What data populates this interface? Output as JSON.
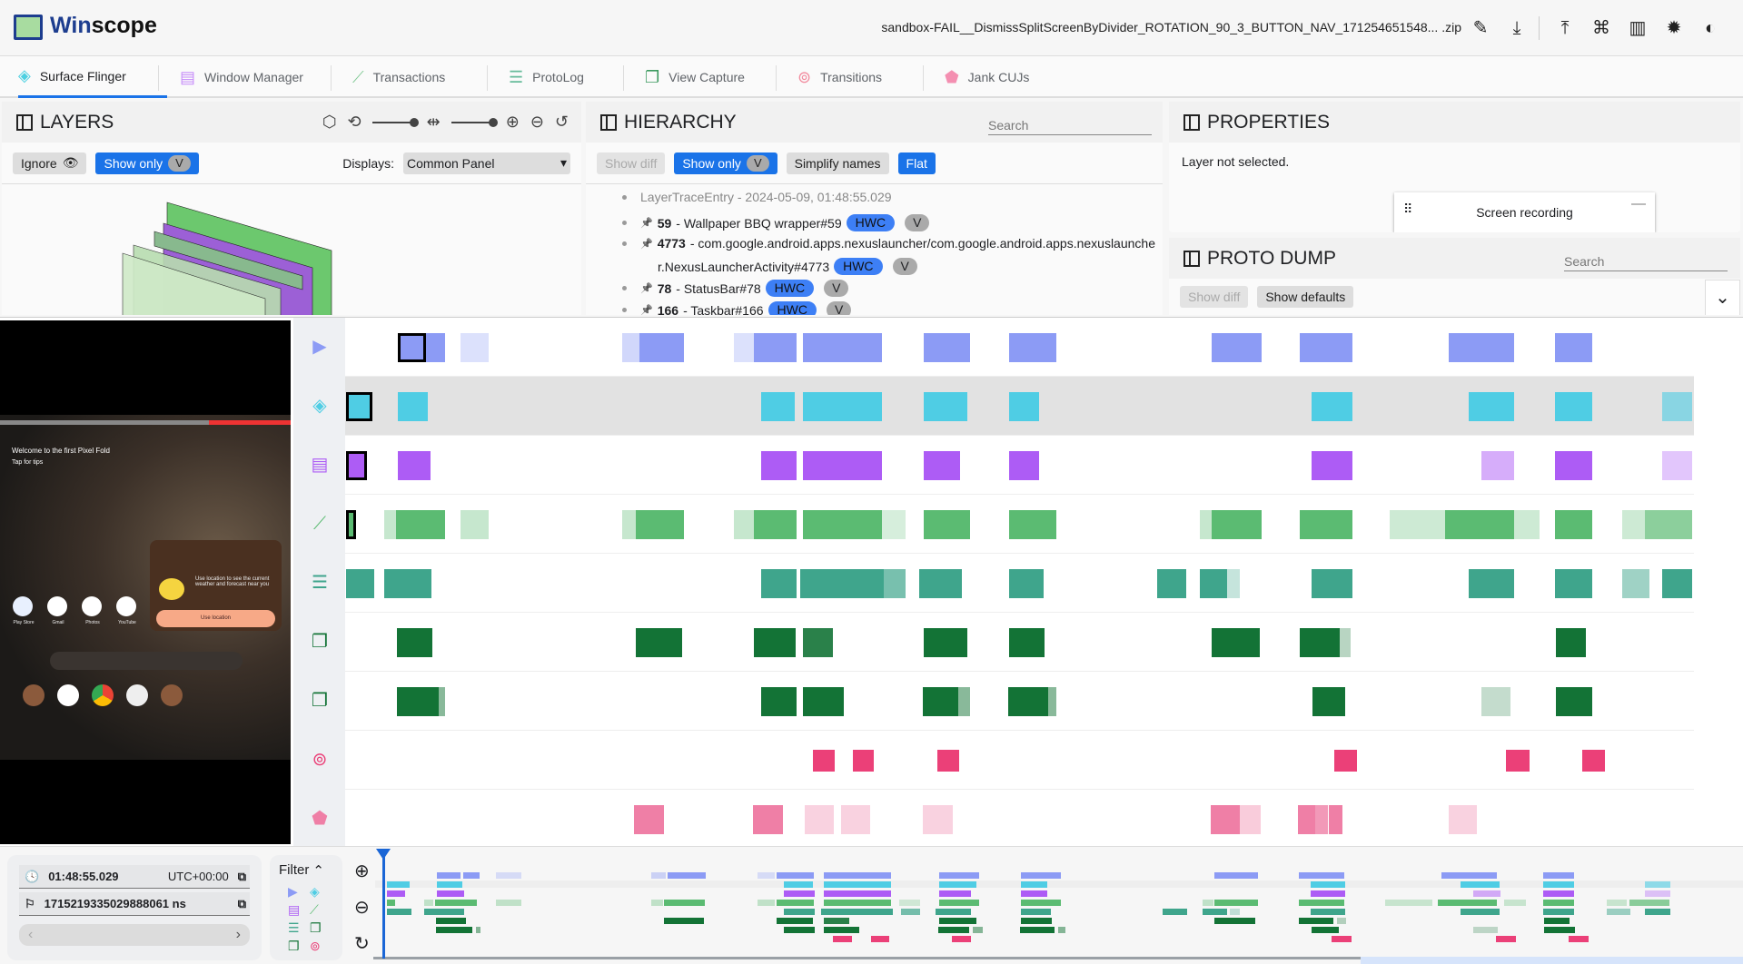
{
  "header": {
    "app_name_a": "Win",
    "app_name_b": "scope",
    "filename": "sandbox-FAIL__DismissSplitScreenByDivider_ROTATION_90_3_BUTTON_NAV_171254651548... .zip",
    "icons": [
      "edit-icon",
      "download-icon",
      "upload-icon",
      "shortcuts-icon",
      "docs-icon",
      "bug-icon",
      "theme-icon"
    ]
  },
  "tabs": [
    {
      "label": "Surface Flinger",
      "icon": "layers-icon",
      "color": "#4dd0e1",
      "active": true
    },
    {
      "label": "Window Manager",
      "icon": "window-icon",
      "color": "#c58af9"
    },
    {
      "label": "Transactions",
      "icon": "timeline-icon",
      "color": "#81c995"
    },
    {
      "label": "ProtoLog",
      "icon": "notes-icon",
      "color": "#66bb9a"
    },
    {
      "label": "View Capture",
      "icon": "filter-none-icon",
      "color": "#3c9a5f"
    },
    {
      "label": "Transitions",
      "icon": "transitions-icon",
      "color": "#f28b9e"
    },
    {
      "label": "Jank CUJs",
      "icon": "label-icon",
      "color": "#f48fb1"
    }
  ],
  "layers": {
    "title": "LAYERS",
    "ignore_label": "Ignore",
    "show_only_label": "Show only",
    "chip": "V",
    "displays_label": "Displays:",
    "display_value": "Common Panel"
  },
  "hierarchy": {
    "title": "HIERARCHY",
    "search_placeholder": "Search",
    "show_diff": "Show diff",
    "show_only": "Show only",
    "chip": "V",
    "simplify": "Simplify names",
    "flat": "Flat",
    "root": "LayerTraceEntry - 2024-05-09, 01:48:55.029",
    "items": [
      {
        "id": "59",
        "name": " - Wallpaper BBQ wrapper#59",
        "badge": "HWC",
        "chip": "V"
      },
      {
        "id": "4773",
        "name": " - com.google.android.apps.nexuslauncher/com.google.android.apps.nexuslaunche",
        "name2": "r.NexusLauncherActivity#4773",
        "badge": "HWC",
        "chip": "V"
      },
      {
        "id": "78",
        "name": " - StatusBar#78",
        "badge": "HWC",
        "chip": "V"
      },
      {
        "id": "166",
        "name": " - Taskbar#166",
        "badge": "HWC",
        "chip": "V"
      }
    ]
  },
  "properties": {
    "title": "PROPERTIES",
    "empty": "Layer not selected.",
    "overlay_title": "Screen recording"
  },
  "proto_dump": {
    "title": "PROTO DUMP",
    "search_placeholder": "Search",
    "show_diff": "Show diff",
    "show_defaults": "Show defaults"
  },
  "video": {
    "welcome": "Welcome to the first Pixel Fold",
    "tips": "Tap for tips",
    "weather": "Use location to see the current weather and forecast near you",
    "use_location": "Use location",
    "apps": [
      "Play Store",
      "Gmail",
      "Photos",
      "YouTube"
    ]
  },
  "timeline": {
    "rows": [
      {
        "name": "screen-recording",
        "icon": "videocam-icon",
        "color": "#8c9bf5"
      },
      {
        "name": "surface-flinger",
        "icon": "layers-icon",
        "color": "#4fcde4"
      },
      {
        "name": "window-manager",
        "icon": "window-icon",
        "color": "#ad5cf5"
      },
      {
        "name": "transactions",
        "icon": "timeline-icon",
        "color": "#5bbb72"
      },
      {
        "name": "protolog",
        "icon": "notes-icon",
        "color": "#3fa58c"
      },
      {
        "name": "view-capture-1",
        "icon": "filter-none-icon",
        "color": "#137336"
      },
      {
        "name": "view-capture-2",
        "icon": "filter-none-icon",
        "color": "#137336"
      },
      {
        "name": "transitions",
        "icon": "transitions-icon",
        "color": "#eb4078"
      },
      {
        "name": "jank-cujs",
        "icon": "label-icon",
        "color": "#ef7fa6"
      }
    ],
    "selected_row": 1
  },
  "bottom": {
    "time": "01:48:55.029",
    "timezone": "UTC+00:00",
    "ns": "1715219335029888061 ns",
    "filter_label": "Filter",
    "cursor_color": "#1a66d6"
  }
}
